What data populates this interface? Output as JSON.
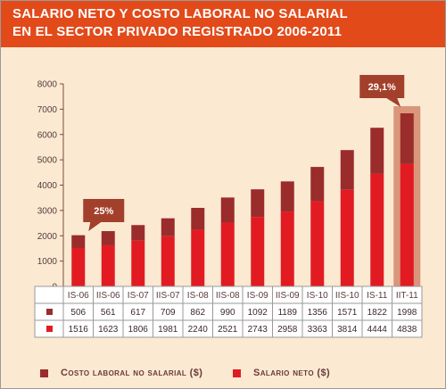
{
  "title_lines": [
    "SALARIO NETO Y COSTO LABORAL NO SALARIAL",
    "EN EL SECTOR PRIVADO REGISTRADO 2006-2011"
  ],
  "colors": {
    "header": "#e24a1a",
    "background": "#fbe9d2",
    "costo": "#9b2c2c",
    "salario": "#e21b23",
    "callout": "#a3402b",
    "highlight": "#d9967a"
  },
  "chart_data": {
    "type": "bar",
    "stacked": true,
    "categories": [
      "IS-06",
      "IIS-06",
      "IS-07",
      "IIS-07",
      "IS-08",
      "IIS-08",
      "IS-09",
      "IIS-09",
      "IS-10",
      "IIS-10",
      "IS-11",
      "IIT-11"
    ],
    "series": [
      {
        "name": "Salario neto ($)",
        "values": [
          1516,
          1623,
          1806,
          1981,
          2240,
          2521,
          2743,
          2958,
          3363,
          3814,
          4444,
          4838
        ]
      },
      {
        "name": "Costo laboral no salarial ($)",
        "values": [
          506,
          561,
          617,
          709,
          862,
          990,
          1092,
          1189,
          1356,
          1571,
          1822,
          1998
        ]
      }
    ],
    "ylim": [
      0,
      8000
    ],
    "yticks": [
      "0",
      "1000",
      "2000",
      "3000",
      "4000",
      "5000",
      "6000",
      "7000",
      "8000"
    ],
    "callouts": [
      {
        "text": "25%",
        "category": "IIS-06"
      },
      {
        "text": "29,1%",
        "category": "IIT-11"
      }
    ],
    "highlight_category": "IIT-11",
    "legend": [
      {
        "label": "Costo laboral no salarial ($)",
        "color": "#9b2c2c"
      },
      {
        "label": "Salario neto ($)",
        "color": "#e21b23"
      }
    ],
    "table_rows": [
      {
        "swatch": "#9b2c2c",
        "values": [
          "506",
          "561",
          "617",
          "709",
          "862",
          "990",
          "1092",
          "1189",
          "1356",
          "1571",
          "1822",
          "1998"
        ]
      },
      {
        "swatch": "#e21b23",
        "values": [
          "1516",
          "1623",
          "1806",
          "1981",
          "2240",
          "2521",
          "2743",
          "2958",
          "3363",
          "3814",
          "4444",
          "4838"
        ]
      }
    ]
  }
}
